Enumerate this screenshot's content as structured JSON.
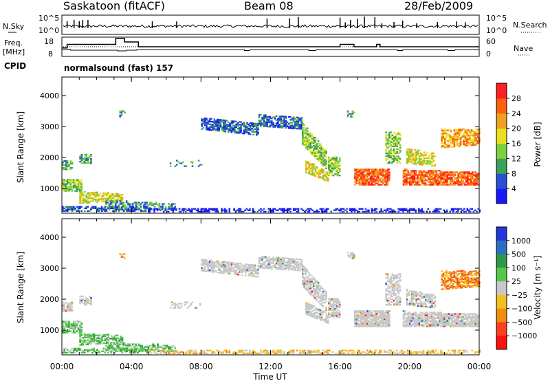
{
  "header": {
    "title": "Saskatoon (fitACF)",
    "beam": "Beam 08",
    "date": "28/Feb/2009"
  },
  "top_panel": {
    "left_label": "N.Sky",
    "right_label": "N.Search",
    "ticks": [
      "10^5",
      "10^0"
    ]
  },
  "freq_panel": {
    "left_label_1": "Freq.",
    "left_label_2": "[MHz]",
    "right_label": "Nave",
    "left_ticks": [
      "18",
      "8"
    ],
    "right_ticks": [
      "60",
      "0"
    ]
  },
  "cpid": {
    "label": "CPID",
    "value": "normalsound (fast) 157"
  },
  "colors": {
    "power_scale": [
      "#1818ff",
      "#2a4fd0",
      "#3da058",
      "#7cd03c",
      "#e8e020",
      "#f0a020",
      "#ff6010",
      "#ff2020"
    ],
    "velocity_scale": [
      "#2436d8",
      "#2e6ec0",
      "#2e9848",
      "#56c848",
      "#c8c8c8",
      "#f0c020",
      "#f08c10",
      "#ff4020",
      "#ff1010"
    ],
    "ground_scatter": "#c8c8c8"
  },
  "chart_data": [
    {
      "type": "heatmap",
      "panel": "power",
      "ylabel": "Slant Range [km]",
      "yticks": [
        "1000",
        "2000",
        "3000",
        "4000"
      ],
      "ylim": [
        200,
        4600
      ],
      "xlim": [
        0,
        24
      ],
      "colorbar_label": "Power [dB]",
      "colorbar_ticks": [
        "4",
        "8",
        "12",
        "16",
        "20",
        "24",
        "28"
      ],
      "colorbar_range": [
        0,
        32
      ]
    },
    {
      "type": "heatmap",
      "panel": "velocity",
      "ylabel": "Slant Range [km]",
      "yticks": [
        "1000",
        "2000",
        "3000",
        "4000"
      ],
      "ylim": [
        200,
        4600
      ],
      "xlim": [
        0,
        24
      ],
      "colorbar_label": "Velocity [m s⁻¹]",
      "colorbar_ticks": [
        "1000",
        "500",
        "100",
        "25",
        "−25",
        "−100",
        "−500",
        "−1000"
      ]
    }
  ],
  "x_axis": {
    "label": "Time UT",
    "ticks": [
      "00:00",
      "04:00",
      "08:00",
      "12:00",
      "16:00",
      "20:00",
      "00:00"
    ]
  }
}
